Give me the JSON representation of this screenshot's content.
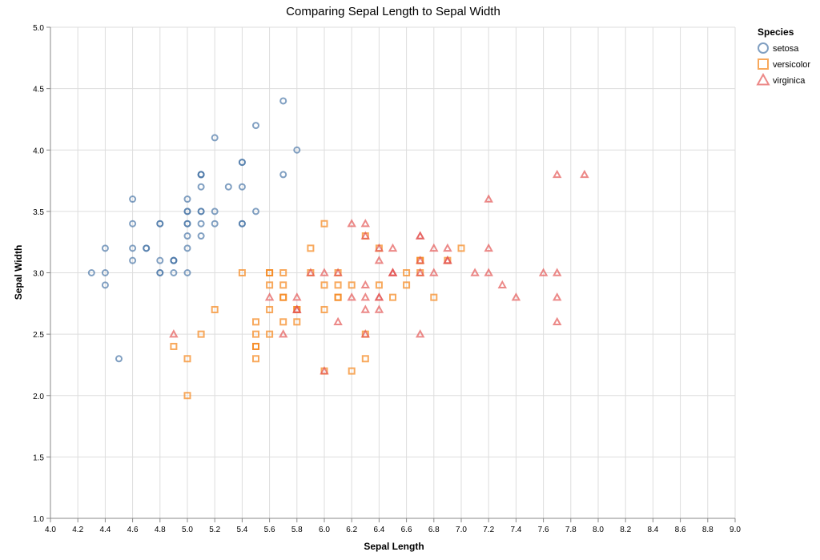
{
  "chart_data": {
    "type": "scatter",
    "title": "Comparing Sepal Length to Sepal Width",
    "xlabel": "Sepal Length",
    "ylabel": "Sepal Width",
    "xlim": [
      4.0,
      9.0
    ],
    "ylim": [
      1.0,
      5.0
    ],
    "x_ticks": [
      "4.0",
      "4.2",
      "4.4",
      "4.6",
      "4.8",
      "5.0",
      "5.2",
      "5.4",
      "5.6",
      "5.8",
      "6.0",
      "6.2",
      "6.4",
      "6.6",
      "6.8",
      "7.0",
      "7.2",
      "7.4",
      "7.6",
      "7.8",
      "8.0",
      "8.2",
      "8.4",
      "8.6",
      "8.8",
      "9.0"
    ],
    "y_ticks": [
      "1.0",
      "1.5",
      "2.0",
      "2.5",
      "3.0",
      "3.5",
      "4.0",
      "4.5",
      "5.0"
    ],
    "grid": true,
    "legend": {
      "title": "Species",
      "placement": "top-right"
    },
    "series": [
      {
        "name": "setosa",
        "shape": "circle",
        "color": "#4c78a8",
        "points": [
          [
            5.1,
            3.5
          ],
          [
            4.9,
            3.0
          ],
          [
            4.7,
            3.2
          ],
          [
            4.6,
            3.1
          ],
          [
            5.0,
            3.6
          ],
          [
            5.4,
            3.9
          ],
          [
            4.6,
            3.4
          ],
          [
            5.0,
            3.4
          ],
          [
            4.4,
            2.9
          ],
          [
            4.9,
            3.1
          ],
          [
            5.4,
            3.7
          ],
          [
            4.8,
            3.4
          ],
          [
            4.8,
            3.0
          ],
          [
            4.3,
            3.0
          ],
          [
            5.8,
            4.0
          ],
          [
            5.7,
            4.4
          ],
          [
            5.4,
            3.9
          ],
          [
            5.1,
            3.5
          ],
          [
            5.7,
            3.8
          ],
          [
            5.1,
            3.8
          ],
          [
            5.4,
            3.4
          ],
          [
            5.1,
            3.7
          ],
          [
            4.6,
            3.6
          ],
          [
            5.1,
            3.3
          ],
          [
            4.8,
            3.4
          ],
          [
            5.0,
            3.0
          ],
          [
            5.0,
            3.4
          ],
          [
            5.2,
            3.5
          ],
          [
            5.2,
            3.4
          ],
          [
            4.7,
            3.2
          ],
          [
            4.8,
            3.1
          ],
          [
            5.4,
            3.4
          ],
          [
            5.2,
            4.1
          ],
          [
            5.5,
            4.2
          ],
          [
            4.9,
            3.1
          ],
          [
            5.0,
            3.2
          ],
          [
            5.5,
            3.5
          ],
          [
            4.9,
            3.1
          ],
          [
            4.4,
            3.0
          ],
          [
            5.1,
            3.4
          ],
          [
            5.0,
            3.5
          ],
          [
            4.5,
            2.3
          ],
          [
            4.4,
            3.2
          ],
          [
            5.0,
            3.5
          ],
          [
            5.1,
            3.8
          ],
          [
            4.8,
            3.0
          ],
          [
            5.1,
            3.8
          ],
          [
            4.6,
            3.2
          ],
          [
            5.3,
            3.7
          ],
          [
            5.0,
            3.3
          ]
        ]
      },
      {
        "name": "versicolor",
        "shape": "square",
        "color": "#f58518",
        "points": [
          [
            7.0,
            3.2
          ],
          [
            6.4,
            3.2
          ],
          [
            6.9,
            3.1
          ],
          [
            5.5,
            2.3
          ],
          [
            6.5,
            2.8
          ],
          [
            5.7,
            2.8
          ],
          [
            6.3,
            3.3
          ],
          [
            4.9,
            2.4
          ],
          [
            6.6,
            2.9
          ],
          [
            5.2,
            2.7
          ],
          [
            5.0,
            2.0
          ],
          [
            5.9,
            3.0
          ],
          [
            6.0,
            2.2
          ],
          [
            6.1,
            2.9
          ],
          [
            5.6,
            2.9
          ],
          [
            6.7,
            3.1
          ],
          [
            5.6,
            3.0
          ],
          [
            5.8,
            2.7
          ],
          [
            6.2,
            2.2
          ],
          [
            5.6,
            2.5
          ],
          [
            5.9,
            3.2
          ],
          [
            6.1,
            2.8
          ],
          [
            6.3,
            2.5
          ],
          [
            6.1,
            2.8
          ],
          [
            6.4,
            2.9
          ],
          [
            6.6,
            3.0
          ],
          [
            6.8,
            2.8
          ],
          [
            6.7,
            3.0
          ],
          [
            6.0,
            2.9
          ],
          [
            5.7,
            2.6
          ],
          [
            5.5,
            2.4
          ],
          [
            5.5,
            2.4
          ],
          [
            5.8,
            2.7
          ],
          [
            6.0,
            2.7
          ],
          [
            5.4,
            3.0
          ],
          [
            6.0,
            3.4
          ],
          [
            6.7,
            3.1
          ],
          [
            6.3,
            2.3
          ],
          [
            5.6,
            3.0
          ],
          [
            5.5,
            2.5
          ],
          [
            5.5,
            2.6
          ],
          [
            6.1,
            3.0
          ],
          [
            5.8,
            2.6
          ],
          [
            5.0,
            2.3
          ],
          [
            5.6,
            2.7
          ],
          [
            5.7,
            3.0
          ],
          [
            5.7,
            2.9
          ],
          [
            6.2,
            2.9
          ],
          [
            5.1,
            2.5
          ],
          [
            5.7,
            2.8
          ]
        ]
      },
      {
        "name": "virginica",
        "shape": "triangle",
        "color": "#e45756",
        "points": [
          [
            6.3,
            3.3
          ],
          [
            5.8,
            2.7
          ],
          [
            7.1,
            3.0
          ],
          [
            6.3,
            2.9
          ],
          [
            6.5,
            3.0
          ],
          [
            7.6,
            3.0
          ],
          [
            4.9,
            2.5
          ],
          [
            7.3,
            2.9
          ],
          [
            6.7,
            2.5
          ],
          [
            7.2,
            3.6
          ],
          [
            6.5,
            3.2
          ],
          [
            6.4,
            2.7
          ],
          [
            6.8,
            3.0
          ],
          [
            5.7,
            2.5
          ],
          [
            5.8,
            2.8
          ],
          [
            6.4,
            3.2
          ],
          [
            6.5,
            3.0
          ],
          [
            7.7,
            3.8
          ],
          [
            7.7,
            2.6
          ],
          [
            6.0,
            2.2
          ],
          [
            6.9,
            3.2
          ],
          [
            5.6,
            2.8
          ],
          [
            7.7,
            2.8
          ],
          [
            6.3,
            2.7
          ],
          [
            6.7,
            3.3
          ],
          [
            7.2,
            3.2
          ],
          [
            6.2,
            2.8
          ],
          [
            6.1,
            3.0
          ],
          [
            6.4,
            2.8
          ],
          [
            7.2,
            3.0
          ],
          [
            7.4,
            2.8
          ],
          [
            7.9,
            3.8
          ],
          [
            6.4,
            2.8
          ],
          [
            6.3,
            2.8
          ],
          [
            6.1,
            2.6
          ],
          [
            7.7,
            3.0
          ],
          [
            6.3,
            3.4
          ],
          [
            6.4,
            3.1
          ],
          [
            6.0,
            3.0
          ],
          [
            6.9,
            3.1
          ],
          [
            6.7,
            3.1
          ],
          [
            6.9,
            3.1
          ],
          [
            5.8,
            2.7
          ],
          [
            6.8,
            3.2
          ],
          [
            6.7,
            3.3
          ],
          [
            6.7,
            3.0
          ],
          [
            6.3,
            2.5
          ],
          [
            6.5,
            3.0
          ],
          [
            6.2,
            3.4
          ],
          [
            5.9,
            3.0
          ]
        ]
      }
    ]
  }
}
